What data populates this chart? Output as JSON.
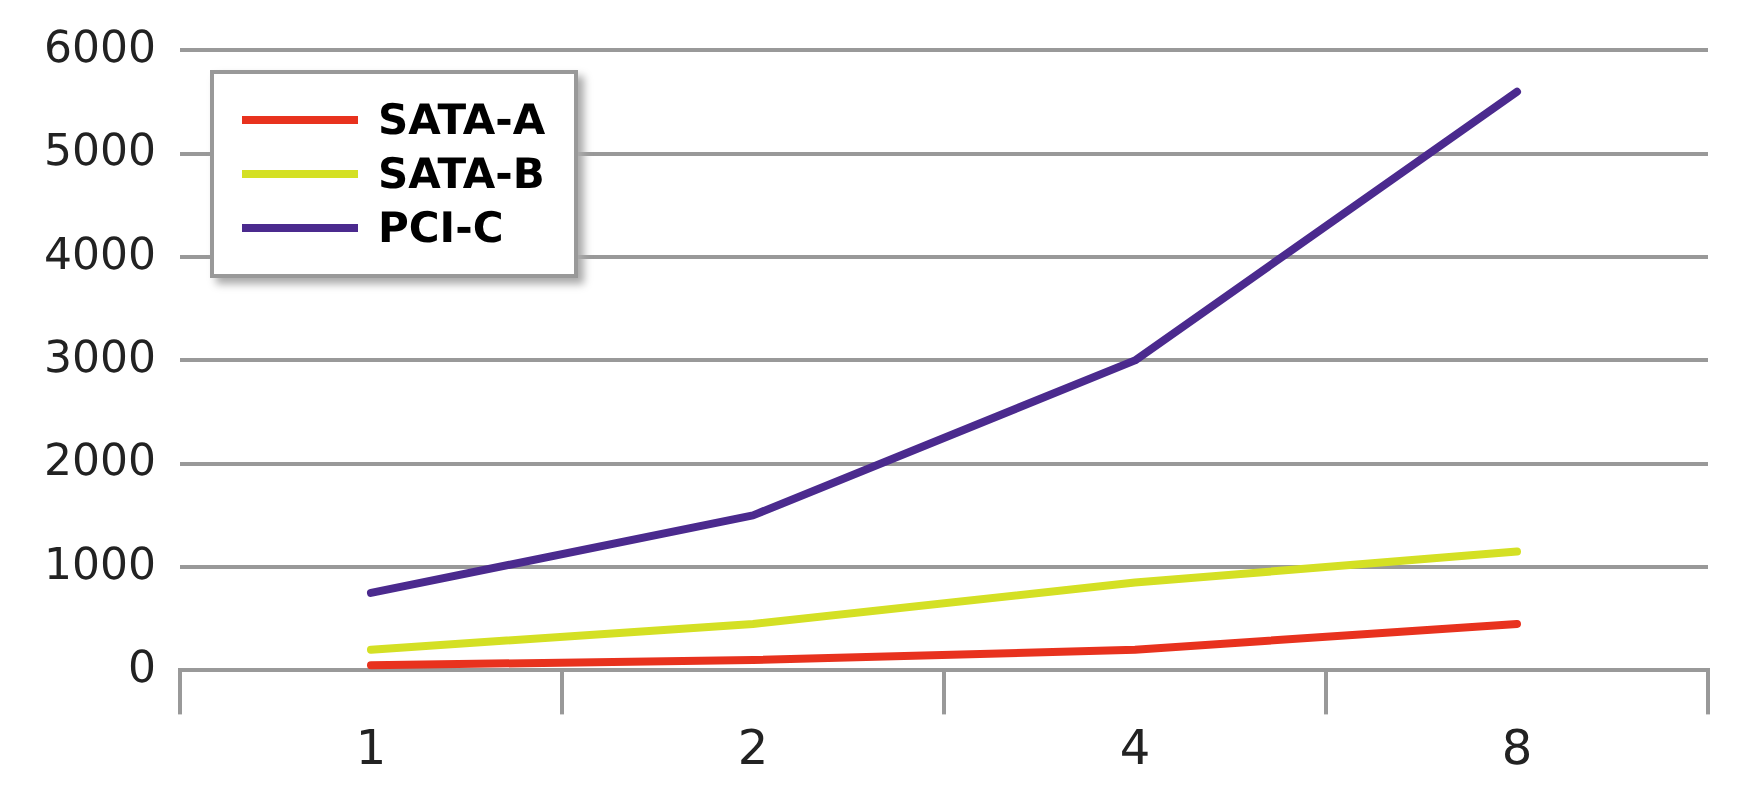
{
  "chart_data": {
    "type": "line",
    "categories": [
      "1",
      "2",
      "4",
      "8"
    ],
    "series": [
      {
        "name": "SATA-A",
        "color": "#e8321e",
        "values": [
          50,
          100,
          200,
          450
        ]
      },
      {
        "name": "SATA-B",
        "color": "#d4e024",
        "values": [
          200,
          450,
          850,
          1150
        ]
      },
      {
        "name": "PCI-C",
        "color": "#4b2a8e",
        "values": [
          750,
          1500,
          3000,
          5600
        ]
      }
    ],
    "ylim": [
      0,
      6000
    ],
    "yticks": [
      0,
      1000,
      2000,
      3000,
      4000,
      5000,
      6000
    ],
    "grid": "y",
    "legend": "top left",
    "marker": "none",
    "line_style": "solid"
  }
}
